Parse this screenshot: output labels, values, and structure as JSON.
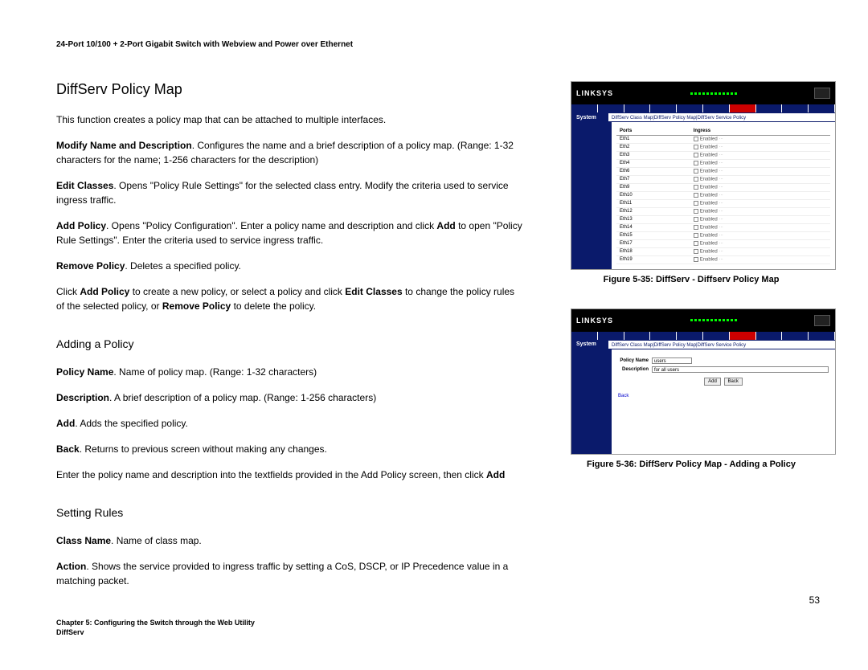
{
  "header": "24-Port 10/100 + 2-Port Gigabit Switch with Webview and Power over Ethernet",
  "section1": {
    "title": "DiffServ Policy Map",
    "p1": "This function creates a policy map that can be attached to multiple interfaces.",
    "p2a": "Modify Name and Description",
    "p2b": ". Configures the name and a brief description of a policy map. (Range: 1-32 characters for the name; 1-256 characters for the description)",
    "p3a": "Edit Classes",
    "p3b": ". Opens \"Policy Rule Settings\" for the selected class entry. Modify the criteria used to service ingress traffic.",
    "p4a": "Add Policy",
    "p4b": ". Opens \"Policy Configuration\". Enter a policy name and description and click ",
    "p4c": "Add",
    "p4d": " to open \"Policy Rule Settings\". Enter the criteria used to service ingress traffic.",
    "p5a": "Remove Policy",
    "p5b": ". Deletes a specified policy.",
    "p6a": "Click ",
    "p6b": "Add Policy",
    "p6c": " to create a new policy, or select a policy and click ",
    "p6d": "Edit Classes",
    "p6e": " to change the policy rules of the selected policy, or ",
    "p6f": "Remove Policy",
    "p6g": " to delete the policy."
  },
  "section2": {
    "title": "Adding a Policy",
    "p1a": "Policy Name",
    "p1b": ". Name of policy map. (Range: 1-32 characters)",
    "p2a": "Description",
    "p2b": ". A brief description of a policy map. (Range: 1-256 characters)",
    "p3a": "Add",
    "p3b": ". Adds the specified policy.",
    "p4a": "Back",
    "p4b": ". Returns to previous screen without making any changes.",
    "p5a": "Enter the policy name and description into the textfields provided in the Add Policy screen, then click ",
    "p5b": "Add"
  },
  "section3": {
    "title": "Setting Rules",
    "p1a": "Class Name",
    "p1b": ". Name of class map.",
    "p2a": "Action",
    "p2b": ". Shows the service provided to ingress traffic by setting a CoS, DSCP, or IP Precedence value in a matching packet."
  },
  "figures": {
    "fig1_caption": "Figure 5-35: DiffServ - Diffserv Policy Map",
    "fig2_caption": "Figure 5-36: DiffServ Policy Map - Adding a Policy",
    "logo": "LINKSYS",
    "system_label": "System",
    "breadcrumb": "DiffServ Class Map|DiffServ Policy Map|DiffServ Service Policy",
    "ports_header_1": "Ports",
    "ports_header_2": "Ingress",
    "port_rows": [
      "Eth1",
      "Eth2",
      "Eth3",
      "Eth4",
      "Eth6",
      "Eth7",
      "Eth9",
      "Eth10",
      "Eth11",
      "Eth12",
      "Eth13",
      "Eth14",
      "Eth15",
      "Eth17",
      "Eth18",
      "Eth19"
    ],
    "enabled_label": "Enabled",
    "form_policy_label": "Policy Name",
    "form_policy_value": "users",
    "form_desc_label": "Description",
    "form_desc_value": "for all users",
    "btn_add": "Add",
    "btn_back": "Back",
    "link_back": "Back"
  },
  "page_number": "53",
  "footer_line1": "Chapter 5: Configuring the Switch through the Web Utility",
  "footer_line2": "DiffServ"
}
